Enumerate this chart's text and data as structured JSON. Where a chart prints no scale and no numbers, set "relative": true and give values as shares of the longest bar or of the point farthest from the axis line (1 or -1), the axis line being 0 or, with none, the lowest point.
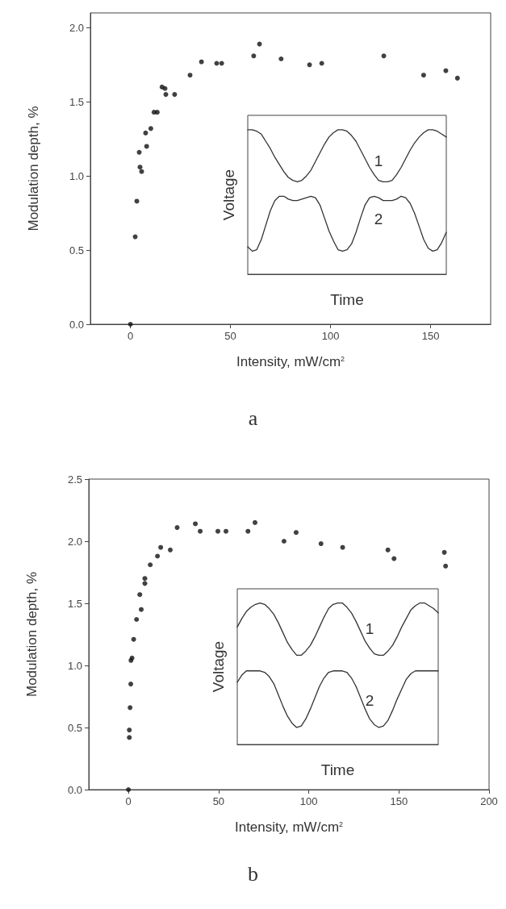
{
  "chart_data": [
    {
      "type": "scatter",
      "title": "a",
      "xlabel": "Intensity, mW/cm$^{2}$",
      "ylabel": "Modulation depth, %",
      "color": "#111111",
      "marker": "circle",
      "grid": false,
      "x": [
        0,
        2.4,
        3.2,
        4.4,
        4.8,
        5.6,
        8.1,
        7.6,
        10.2,
        11.8,
        13.4,
        15.8,
        17.3,
        17.7,
        22.1,
        29.8,
        35.5,
        43.1,
        45.6,
        61.6,
        64.5,
        75.3,
        89.5,
        95.6,
        126.6,
        146.5,
        157.6,
        163.4
      ],
      "values": [
        0,
        0.59,
        0.83,
        1.16,
        1.06,
        1.03,
        1.2,
        1.29,
        1.32,
        1.43,
        1.43,
        1.6,
        1.59,
        1.55,
        1.55,
        1.68,
        1.77,
        1.76,
        1.76,
        1.81,
        1.89,
        1.79,
        1.75,
        1.76,
        1.81,
        1.68,
        1.71,
        1.66
      ],
      "xlim": [
        -20,
        180
      ],
      "xticks": [
        0,
        50,
        100,
        150
      ],
      "ylim": [
        0,
        2.1
      ],
      "yticks": [
        {
          "value": 0,
          "label": "0.0"
        },
        {
          "value": 0.5,
          "label": "0.5"
        },
        {
          "value": 1,
          "label": "1.0"
        },
        {
          "value": 1.5,
          "label": "1.5"
        },
        {
          "value": 2,
          "label": "2.0"
        }
      ]
    },
    {
      "type": "line",
      "xlabel": "Time",
      "ylabel": "Voltage",
      "relative": true,
      "grid": false,
      "marker": "none",
      "line_style": "solid",
      "categories": [
        null,
        null,
        null,
        null,
        null,
        null,
        null,
        null,
        null,
        null,
        null,
        null,
        null,
        null,
        null,
        null,
        null,
        null,
        null,
        null,
        null,
        null,
        null,
        null,
        null,
        null,
        null,
        null,
        null,
        null,
        null,
        null,
        null,
        null,
        null,
        null,
        null,
        null,
        null,
        null,
        null,
        null,
        null,
        null,
        null
      ],
      "series": [
        {
          "name": "1",
          "color": "#333333",
          "values": [
            1.0,
            1.0,
            0.99,
            0.97,
            0.92,
            0.87,
            0.81,
            0.76,
            0.71,
            0.67,
            0.65,
            0.64,
            0.65,
            0.68,
            0.72,
            0.78,
            0.84,
            0.9,
            0.95,
            0.98,
            1.0,
            1.0,
            0.99,
            0.96,
            0.92,
            0.86,
            0.8,
            0.74,
            0.69,
            0.65,
            0.64,
            0.64,
            0.65,
            0.69,
            0.74,
            0.8,
            0.86,
            0.91,
            0.95,
            0.98,
            1.0,
            1.0,
            0.99,
            0.97,
            0.95
          ]
        },
        {
          "name": "2",
          "color": "#333333",
          "values": [
            0.19,
            0.16,
            0.17,
            0.24,
            0.34,
            0.44,
            0.51,
            0.54,
            0.54,
            0.52,
            0.51,
            0.51,
            0.52,
            0.53,
            0.54,
            0.53,
            0.48,
            0.39,
            0.3,
            0.23,
            0.17,
            0.16,
            0.17,
            0.21,
            0.29,
            0.39,
            0.48,
            0.53,
            0.54,
            0.53,
            0.51,
            0.51,
            0.51,
            0.52,
            0.54,
            0.53,
            0.49,
            0.42,
            0.33,
            0.24,
            0.18,
            0.16,
            0.17,
            0.22,
            0.29
          ]
        }
      ]
    },
    {
      "type": "scatter",
      "title": "b",
      "xlabel": "Intensity, mW/cm$^{2}$",
      "ylabel": "Modulation depth, %",
      "color": "#111111",
      "marker": "circle",
      "grid": false,
      "x": [
        0,
        0.5,
        0.5,
        0.9,
        1.3,
        1.4,
        2.0,
        2.9,
        4.5,
        6.3,
        7.1,
        9.1,
        9.1,
        12.1,
        16.1,
        17.9,
        23.2,
        27.0,
        37.1,
        39.8,
        49.6,
        54.1,
        66.3,
        70.2,
        86.3,
        93.0,
        106.8,
        118.8,
        143.9,
        147.3,
        175.2,
        175.9
      ],
      "values": [
        0,
        0.42,
        0.48,
        0.66,
        0.85,
        1.04,
        1.06,
        1.21,
        1.37,
        1.57,
        1.45,
        1.7,
        1.66,
        1.81,
        1.88,
        1.95,
        1.93,
        2.11,
        2.14,
        2.08,
        2.08,
        2.08,
        2.08,
        2.15,
        2.0,
        2.07,
        1.98,
        1.95,
        1.93,
        1.86,
        1.91,
        1.8
      ],
      "xlim": [
        -22,
        200
      ],
      "xticks": [
        0,
        50,
        100,
        150,
        200
      ],
      "ylim": [
        0,
        2.5
      ],
      "yticks": [
        {
          "value": 0,
          "label": "0.0"
        },
        {
          "value": 0.5,
          "label": "0.5"
        },
        {
          "value": 1,
          "label": "1.0"
        },
        {
          "value": 1.5,
          "label": "1.5"
        },
        {
          "value": 2,
          "label": "2.0"
        },
        {
          "value": 2.5,
          "label": "2.5"
        }
      ]
    },
    {
      "type": "line",
      "xlabel": "Time",
      "ylabel": "Voltage",
      "relative": true,
      "grid": false,
      "marker": "none",
      "line_style": "solid",
      "categories": [
        null,
        null,
        null,
        null,
        null,
        null,
        null,
        null,
        null,
        null,
        null,
        null,
        null,
        null,
        null,
        null,
        null,
        null,
        null,
        null,
        null,
        null,
        null,
        null,
        null,
        null,
        null,
        null,
        null,
        null,
        null,
        null,
        null,
        null,
        null,
        null,
        null,
        null,
        null,
        null,
        null,
        null,
        null,
        null,
        null
      ],
      "series": [
        {
          "name": "1",
          "color": "#333333",
          "values": [
            0.83,
            0.89,
            0.94,
            0.97,
            0.99,
            1.0,
            0.99,
            0.96,
            0.92,
            0.86,
            0.79,
            0.72,
            0.67,
            0.63,
            0.63,
            0.66,
            0.7,
            0.76,
            0.83,
            0.9,
            0.96,
            0.99,
            1.0,
            1.0,
            0.97,
            0.93,
            0.87,
            0.8,
            0.73,
            0.68,
            0.64,
            0.63,
            0.63,
            0.66,
            0.7,
            0.76,
            0.83,
            0.89,
            0.95,
            0.98,
            1.0,
            1.0,
            0.98,
            0.96,
            0.93
          ]
        },
        {
          "name": "2",
          "color": "#333333",
          "values": [
            0.44,
            0.49,
            0.52,
            0.52,
            0.52,
            0.52,
            0.51,
            0.48,
            0.43,
            0.35,
            0.27,
            0.2,
            0.15,
            0.12,
            0.13,
            0.18,
            0.25,
            0.33,
            0.41,
            0.47,
            0.51,
            0.52,
            0.52,
            0.52,
            0.51,
            0.47,
            0.41,
            0.33,
            0.25,
            0.18,
            0.14,
            0.12,
            0.13,
            0.17,
            0.24,
            0.32,
            0.39,
            0.46,
            0.5,
            0.52,
            0.52,
            0.52,
            0.52,
            0.52,
            0.52
          ]
        }
      ]
    }
  ]
}
